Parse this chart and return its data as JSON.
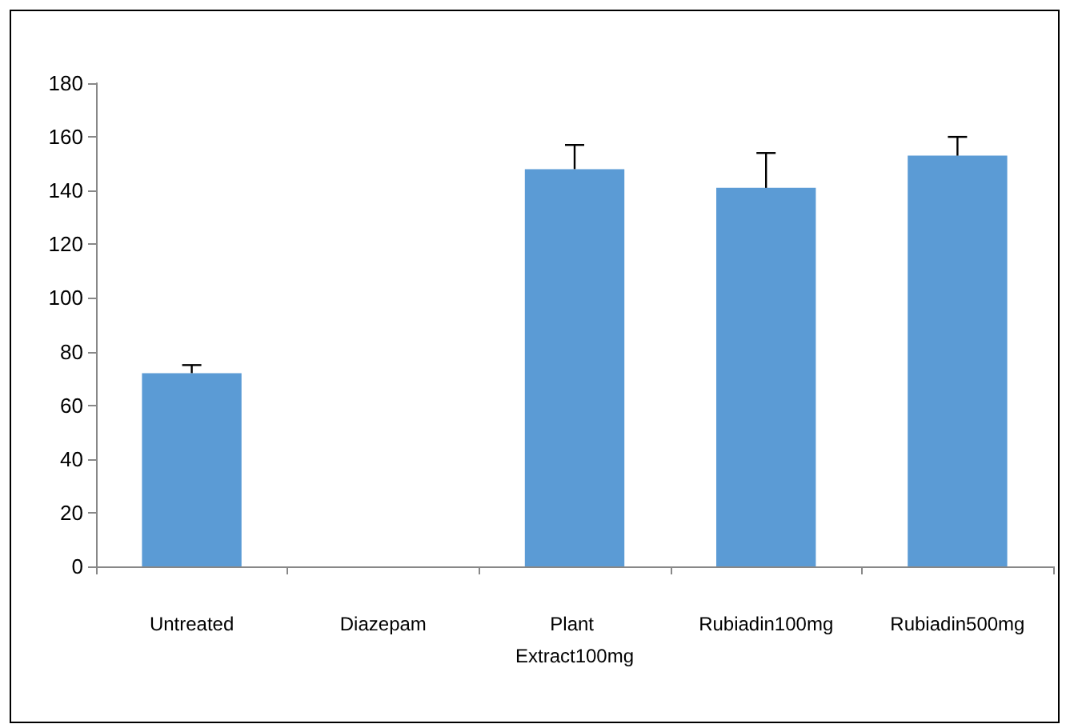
{
  "chart_data": {
    "type": "bar",
    "categories": [
      "Untreated",
      "Diazepam",
      "Plant Extract100mg",
      "Rubiadin100mg",
      "Rubiadin500mg"
    ],
    "values": [
      72,
      0,
      148,
      141,
      153
    ],
    "errors": [
      [
        72,
        75
      ],
      null,
      [
        148,
        157
      ],
      [
        141,
        154
      ],
      [
        153,
        160
      ]
    ],
    "color": "#5b9bd5",
    "ylim": [
      0,
      180
    ],
    "yticks": [
      0,
      20,
      40,
      60,
      80,
      100,
      120,
      140,
      160,
      180
    ],
    "grid": false
  }
}
